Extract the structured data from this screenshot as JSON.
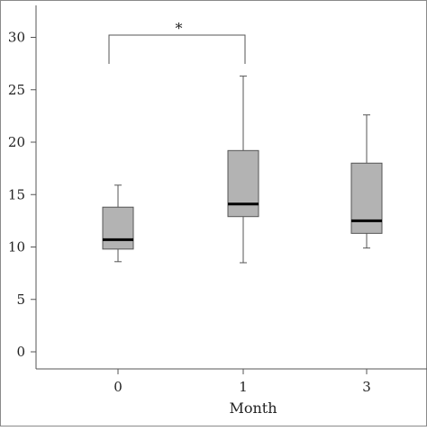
{
  "chart_data": {
    "type": "box",
    "title": "",
    "xlabel": "Month",
    "ylabel": "",
    "ylim": [
      0,
      30
    ],
    "yticks": [
      0,
      5,
      10,
      15,
      20,
      25,
      30
    ],
    "categories": [
      "0",
      "1",
      "3"
    ],
    "boxes": [
      {
        "category": "0",
        "min": 8.6,
        "q1": 9.8,
        "median": 10.7,
        "q3": 13.8,
        "max": 15.9
      },
      {
        "category": "1",
        "min": 8.5,
        "q1": 12.9,
        "median": 14.1,
        "q3": 19.2,
        "max": 26.3
      },
      {
        "category": "3",
        "min": 9.9,
        "q1": 11.3,
        "median": 12.5,
        "q3": 18.0,
        "max": 22.6
      }
    ],
    "grid": false,
    "legend": "none",
    "annotations": [
      {
        "type": "significance-bracket",
        "from": "0",
        "to": "1",
        "label": "*"
      }
    ],
    "colors": {
      "box_fill": "#b3b3b3",
      "stroke": "#555555",
      "median": "#000000",
      "frame": "#8a8a8a"
    }
  }
}
